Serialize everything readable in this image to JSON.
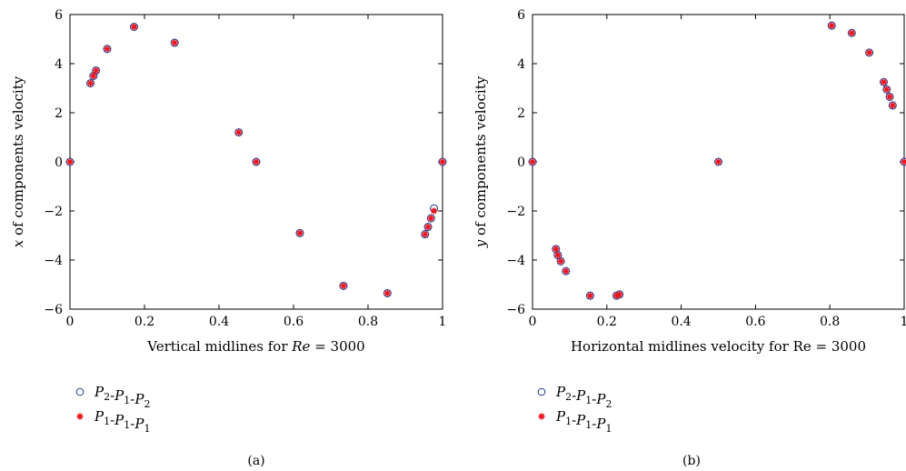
{
  "chart_data": [
    {
      "type": "scatter",
      "panel_label": "(a)",
      "xlabel_parts": [
        "Vertical midlines for ",
        "Re",
        " = 3000"
      ],
      "ylabel_parts": [
        "x",
        " of components velocity"
      ],
      "xlim": [
        0,
        1
      ],
      "ylim": [
        -6,
        6
      ],
      "xticks": [
        0,
        0.2,
        0.4,
        0.6,
        0.8,
        1
      ],
      "yticks": [
        -6,
        -4,
        -2,
        0,
        2,
        4,
        6
      ],
      "xtick_labels": [
        "0",
        "0.2",
        "0.4",
        "0.6",
        "0.8",
        "1"
      ],
      "ytick_labels": [
        "−6",
        "−4",
        "−2",
        "0",
        "2",
        "4",
        "6"
      ],
      "legend": [
        "P2-P1-P2",
        "P1-P1-P1"
      ],
      "series": [
        {
          "name": "P2-P1-P2",
          "marker": "circle",
          "color": "#1f3a93",
          "x": [
            0.0,
            0.055,
            0.063,
            0.07,
            0.1,
            0.172,
            0.281,
            0.453,
            0.5,
            0.617,
            0.734,
            0.852,
            0.953,
            0.961,
            0.969,
            0.977,
            1.0
          ],
          "y": [
            0.0,
            3.2,
            3.5,
            3.72,
            4.6,
            5.5,
            4.85,
            1.2,
            0.0,
            -2.9,
            -5.05,
            -5.35,
            -2.95,
            -2.65,
            -2.3,
            -1.9,
            0.0
          ]
        },
        {
          "name": "P1-P1-P1",
          "marker": "star",
          "color": "#e8141e",
          "x": [
            0.0,
            0.055,
            0.063,
            0.07,
            0.1,
            0.172,
            0.281,
            0.453,
            0.5,
            0.617,
            0.734,
            0.852,
            0.953,
            0.961,
            0.969,
            0.977,
            1.0
          ],
          "y": [
            0.0,
            3.2,
            3.5,
            3.72,
            4.6,
            5.5,
            4.85,
            1.2,
            0.0,
            -2.9,
            -5.05,
            -5.35,
            -2.95,
            -2.65,
            -2.3,
            -2.0,
            0.0
          ]
        }
      ]
    },
    {
      "type": "scatter",
      "panel_label": "(b)",
      "xlabel_parts": [
        "Horizontal midlines velocity for Re = 3000"
      ],
      "ylabel_parts": [
        "y",
        " of components velocity"
      ],
      "xlim": [
        0,
        1
      ],
      "ylim": [
        -6,
        6
      ],
      "xticks": [
        0,
        0.2,
        0.4,
        0.6,
        0.8,
        1
      ],
      "yticks": [
        -6,
        -4,
        -2,
        0,
        2,
        4,
        6
      ],
      "xtick_labels": [
        "0",
        "0.2",
        "0.4",
        "0.6",
        "0.8",
        "1"
      ],
      "ytick_labels": [
        "−6",
        "−4",
        "−2",
        "0",
        "2",
        "4",
        "6"
      ],
      "legend": [
        "P2-P1-P2",
        "P1-P1-P1"
      ],
      "series": [
        {
          "name": "P2-P1-P2",
          "marker": "circle",
          "color": "#1f3a93",
          "x": [
            0.0,
            0.063,
            0.068,
            0.076,
            0.09,
            0.155,
            0.226,
            0.234,
            0.5,
            0.805,
            0.859,
            0.906,
            0.945,
            0.953,
            0.961,
            0.969,
            1.0
          ],
          "y": [
            0.0,
            -3.55,
            -3.8,
            -4.05,
            -4.45,
            -5.45,
            -5.45,
            -5.4,
            0.0,
            5.55,
            5.25,
            4.45,
            3.25,
            2.95,
            2.65,
            2.3,
            0.0
          ]
        },
        {
          "name": "P1-P1-P1",
          "marker": "star",
          "color": "#e8141e",
          "x": [
            0.0,
            0.063,
            0.068,
            0.076,
            0.09,
            0.155,
            0.226,
            0.234,
            0.5,
            0.805,
            0.859,
            0.906,
            0.945,
            0.953,
            0.961,
            0.969,
            1.0
          ],
          "y": [
            0.0,
            -3.55,
            -3.8,
            -4.05,
            -4.45,
            -5.45,
            -5.45,
            -5.4,
            0.0,
            5.55,
            5.25,
            4.45,
            3.25,
            2.95,
            2.65,
            2.3,
            0.0
          ]
        }
      ]
    }
  ]
}
